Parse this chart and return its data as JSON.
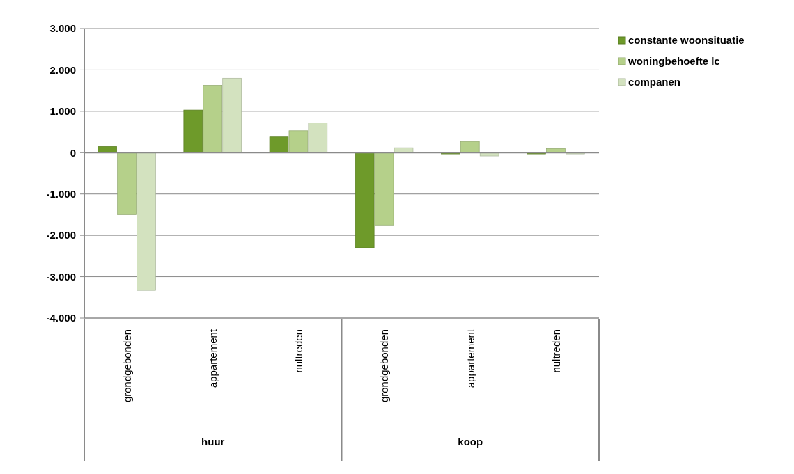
{
  "chart_data": {
    "type": "bar",
    "categories": [
      "grondgebonden",
      "appartement",
      "nultreden",
      "grondgebonden",
      "appartement",
      "nultreden"
    ],
    "annotations": [
      "huur",
      "koop"
    ],
    "series": [
      {
        "name": "constante woonsituatie",
        "color": "#6e9a2a",
        "values": [
          150,
          1030,
          380,
          -2300,
          -30,
          -30
        ]
      },
      {
        "name": "woningbehoefte lc",
        "color": "#b5d08a",
        "values": [
          -1500,
          1630,
          530,
          -1750,
          270,
          100
        ]
      },
      {
        "name": "companen",
        "color": "#d3e2bf",
        "values": [
          -3330,
          1800,
          720,
          120,
          -80,
          -30
        ]
      }
    ],
    "ylim": [
      -4000,
      3000
    ],
    "yticks": [
      {
        "value": -4000,
        "label": "-4.000"
      },
      {
        "value": -3000,
        "label": "-3.000"
      },
      {
        "value": -2000,
        "label": "-2.000"
      },
      {
        "value": -1000,
        "label": "-1.000"
      },
      0,
      {
        "value": 1000,
        "label": "1.000"
      },
      {
        "value": 2000,
        "label": "2.000"
      },
      {
        "value": 3000,
        "label": "3.000"
      }
    ],
    "grid": "y",
    "legend": "right"
  }
}
